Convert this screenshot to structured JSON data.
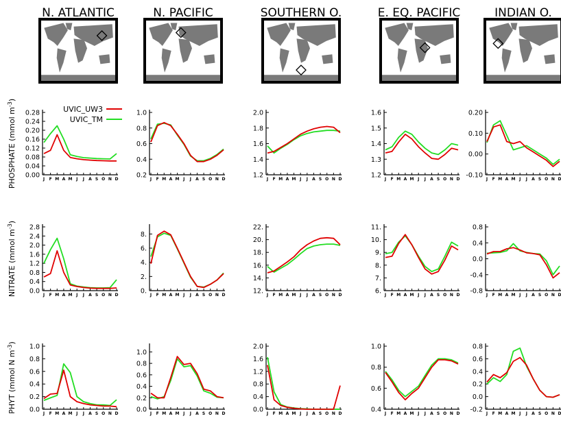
{
  "regions": [
    {
      "title": "N. ATLANTIC",
      "marker": [
        0.82,
        0.25
      ]
    },
    {
      "title": "N. PACIFIC",
      "marker": [
        0.47,
        0.2
      ]
    },
    {
      "title": "SOUTHERN O.",
      "marker": [
        0.5,
        0.82
      ]
    },
    {
      "title": "E. EQ. PACIFIC",
      "marker": [
        0.58,
        0.45
      ]
    },
    {
      "title": "INDIAN O.",
      "marker": [
        0.16,
        0.38
      ]
    }
  ],
  "legend": {
    "uw3": "UVIC_UW3",
    "tm": "UVIC_TM"
  },
  "colors": {
    "uw3": "#e00000",
    "tm": "#22dd22",
    "land": "#7a7a7a"
  },
  "rows": [
    {
      "ylabel": "PHOSPHATE (mmol m",
      "ylabel_sup": "-3",
      "ylabel_end": ")"
    },
    {
      "ylabel": "NITRATE (mmol m",
      "ylabel_sup": "-3",
      "ylabel_end": ")"
    },
    {
      "ylabel": "PHYT (mmol N m",
      "ylabel_sup": "-3",
      "ylabel_end": ")"
    }
  ],
  "month_labels": [
    "J",
    "F",
    "M",
    "A",
    "M",
    "J",
    "J",
    "A",
    "S",
    "O",
    "N",
    "D"
  ],
  "chart_data": [
    {
      "type": "line",
      "row": 0,
      "col": 0,
      "ylim": [
        0,
        0.28
      ],
      "yticks": [
        "0.00",
        "0.04",
        "0.08",
        "0.12",
        "0.16",
        "0.20",
        "0.24",
        "0.28"
      ],
      "series": [
        {
          "name": "UVIC_UW3",
          "values": [
            0.095,
            0.11,
            0.18,
            0.11,
            0.078,
            0.072,
            0.068,
            0.066,
            0.064,
            0.063,
            0.062,
            0.062
          ]
        },
        {
          "name": "UVIC_TM",
          "values": [
            0.145,
            0.185,
            0.22,
            0.16,
            0.09,
            0.082,
            0.077,
            0.075,
            0.073,
            0.072,
            0.071,
            0.095
          ]
        }
      ]
    },
    {
      "type": "line",
      "row": 0,
      "col": 1,
      "ylim": [
        0.2,
        1.0
      ],
      "yticks": [
        "0.2",
        "0.4",
        "0.6",
        "0.8",
        "1.0"
      ],
      "series": [
        {
          "name": "UVIC_UW3",
          "values": [
            0.62,
            0.83,
            0.87,
            0.83,
            0.72,
            0.6,
            0.45,
            0.37,
            0.37,
            0.4,
            0.45,
            0.52
          ]
        },
        {
          "name": "UVIC_TM",
          "values": [
            0.66,
            0.85,
            0.86,
            0.84,
            0.71,
            0.59,
            0.44,
            0.38,
            0.38,
            0.41,
            0.46,
            0.53
          ]
        }
      ]
    },
    {
      "type": "line",
      "row": 0,
      "col": 2,
      "ylim": [
        1.2,
        2.0
      ],
      "yticks": [
        "1.2",
        "1.4",
        "1.6",
        "1.8",
        "2.0"
      ],
      "series": [
        {
          "name": "UVIC_UW3",
          "values": [
            1.48,
            1.5,
            1.55,
            1.6,
            1.66,
            1.72,
            1.76,
            1.79,
            1.81,
            1.82,
            1.81,
            1.74
          ]
        },
        {
          "name": "UVIC_TM",
          "values": [
            1.57,
            1.48,
            1.54,
            1.59,
            1.65,
            1.7,
            1.73,
            1.75,
            1.76,
            1.77,
            1.77,
            1.76
          ]
        }
      ]
    },
    {
      "type": "line",
      "row": 0,
      "col": 3,
      "ylim": [
        1.2,
        1.6
      ],
      "yticks": [
        "1.2",
        "1.3",
        "1.4",
        "1.5",
        "1.6"
      ],
      "series": [
        {
          "name": "UVIC_UW3",
          "values": [
            1.34,
            1.35,
            1.41,
            1.46,
            1.43,
            1.38,
            1.34,
            1.305,
            1.3,
            1.33,
            1.37,
            1.36
          ]
        },
        {
          "name": "UVIC_TM",
          "values": [
            1.36,
            1.38,
            1.44,
            1.48,
            1.46,
            1.41,
            1.37,
            1.34,
            1.33,
            1.36,
            1.4,
            1.39
          ]
        }
      ]
    },
    {
      "type": "line",
      "row": 0,
      "col": 4,
      "ylim": [
        -0.1,
        0.2
      ],
      "yticks": [
        "-0.10",
        "0.00",
        "0.10",
        "0.20"
      ],
      "series": [
        {
          "name": "UVIC_UW3",
          "values": [
            0.06,
            0.13,
            0.14,
            0.06,
            0.05,
            0.06,
            0.03,
            0.01,
            -0.01,
            -0.03,
            -0.06,
            -0.035
          ]
        },
        {
          "name": "UVIC_TM",
          "values": [
            0.055,
            0.14,
            0.16,
            0.09,
            0.02,
            0.03,
            0.04,
            0.02,
            0.0,
            -0.02,
            -0.05,
            -0.025
          ]
        }
      ]
    },
    {
      "type": "line",
      "row": 1,
      "col": 0,
      "ylim": [
        0,
        2.8
      ],
      "yticks": [
        "0.0",
        "0.4",
        "0.8",
        "1.2",
        "1.6",
        "2.0",
        "2.4",
        "2.8"
      ],
      "series": [
        {
          "name": "UVIC_UW3",
          "values": [
            0.6,
            0.75,
            1.75,
            0.8,
            0.25,
            0.18,
            0.14,
            0.11,
            0.1,
            0.1,
            0.1,
            0.12
          ]
        },
        {
          "name": "UVIC_TM",
          "values": [
            1.2,
            1.8,
            2.3,
            1.4,
            0.3,
            0.2,
            0.16,
            0.13,
            0.12,
            0.12,
            0.13,
            0.48
          ]
        }
      ]
    },
    {
      "type": "line",
      "row": 1,
      "col": 1,
      "ylim": [
        0,
        9
      ],
      "yticks": [
        "0.",
        "2.",
        "4.",
        "6.",
        "8."
      ],
      "series": [
        {
          "name": "UVIC_UW3",
          "values": [
            3.8,
            7.8,
            8.4,
            7.9,
            6.0,
            4.0,
            2.0,
            0.6,
            0.45,
            0.9,
            1.5,
            2.4
          ]
        },
        {
          "name": "UVIC_TM",
          "values": [
            4.8,
            7.6,
            8.1,
            7.8,
            5.9,
            3.9,
            1.9,
            0.6,
            0.5,
            0.9,
            1.5,
            2.5
          ]
        }
      ]
    },
    {
      "type": "line",
      "row": 1,
      "col": 2,
      "ylim": [
        12,
        22
      ],
      "yticks": [
        "12.",
        "14.",
        "16.",
        "18.",
        "20.",
        "22."
      ],
      "series": [
        {
          "name": "UVIC_UW3",
          "values": [
            14.8,
            15.1,
            15.8,
            16.5,
            17.3,
            18.4,
            19.2,
            19.8,
            20.2,
            20.3,
            20.2,
            19.2
          ]
        },
        {
          "name": "UVIC_TM",
          "values": [
            15.8,
            14.9,
            15.5,
            16.1,
            16.9,
            17.8,
            18.6,
            19.0,
            19.2,
            19.3,
            19.3,
            19.1
          ]
        }
      ]
    },
    {
      "type": "line",
      "row": 1,
      "col": 3,
      "ylim": [
        6,
        11
      ],
      "yticks": [
        "6.",
        "7.",
        "8.",
        "9.",
        "10.",
        "11."
      ],
      "series": [
        {
          "name": "UVIC_UW3",
          "values": [
            8.6,
            8.7,
            9.7,
            10.4,
            9.6,
            8.6,
            7.7,
            7.3,
            7.5,
            8.4,
            9.5,
            9.2
          ]
        },
        {
          "name": "UVIC_TM",
          "values": [
            8.9,
            9.0,
            9.8,
            10.3,
            9.6,
            8.7,
            7.9,
            7.5,
            7.7,
            8.7,
            9.8,
            9.5
          ]
        }
      ]
    },
    {
      "type": "line",
      "row": 1,
      "col": 4,
      "ylim": [
        -0.8,
        0.8
      ],
      "yticks": [
        "-0.8",
        "-0.4",
        "0.0",
        "0.4",
        "0.8"
      ],
      "series": [
        {
          "name": "UVIC_UW3",
          "values": [
            0.12,
            0.18,
            0.18,
            0.25,
            0.28,
            0.22,
            0.15,
            0.13,
            0.1,
            -0.15,
            -0.48,
            -0.35
          ]
        },
        {
          "name": "UVIC_TM",
          "values": [
            0.14,
            0.15,
            0.16,
            0.2,
            0.38,
            0.2,
            0.16,
            0.13,
            0.12,
            -0.05,
            -0.4,
            -0.18
          ]
        }
      ]
    },
    {
      "type": "line",
      "row": 2,
      "col": 0,
      "ylim": [
        0,
        1.0
      ],
      "yticks": [
        "0.0",
        "0.2",
        "0.4",
        "0.6",
        "0.8",
        "1.0"
      ],
      "series": [
        {
          "name": "UVIC_UW3",
          "values": [
            0.17,
            0.24,
            0.25,
            0.62,
            0.2,
            0.12,
            0.09,
            0.07,
            0.06,
            0.05,
            0.05,
            0.04
          ]
        },
        {
          "name": "UVIC_TM",
          "values": [
            0.14,
            0.18,
            0.22,
            0.72,
            0.58,
            0.2,
            0.12,
            0.09,
            0.07,
            0.07,
            0.06,
            0.15
          ]
        }
      ]
    },
    {
      "type": "line",
      "row": 2,
      "col": 1,
      "ylim": [
        0,
        1.1
      ],
      "yticks": [
        "0.0",
        "0.2",
        "0.4",
        "0.6",
        "0.8",
        "1.0"
      ],
      "series": [
        {
          "name": "UVIC_UW3",
          "values": [
            0.28,
            0.2,
            0.2,
            0.55,
            0.92,
            0.78,
            0.8,
            0.62,
            0.35,
            0.32,
            0.22,
            0.2
          ]
        },
        {
          "name": "UVIC_TM",
          "values": [
            0.22,
            0.18,
            0.22,
            0.5,
            0.88,
            0.74,
            0.76,
            0.58,
            0.32,
            0.28,
            0.21,
            0.2
          ]
        }
      ]
    },
    {
      "type": "line",
      "row": 2,
      "col": 2,
      "ylim": [
        0,
        2.0
      ],
      "yticks": [
        "0.0",
        "0.4",
        "0.8",
        "1.2",
        "1.6",
        "2.0"
      ],
      "series": [
        {
          "name": "UVIC_UW3",
          "values": [
            1.4,
            0.3,
            0.12,
            0.06,
            0.03,
            0.01,
            0.0,
            0.0,
            0.0,
            0.0,
            0.0,
            0.75
          ]
        },
        {
          "name": "UVIC_TM",
          "values": [
            1.65,
            0.55,
            0.15,
            0.07,
            0.04,
            0.02,
            0.01,
            0.0,
            0.0,
            0.0,
            0.0,
            0.0
          ]
        }
      ]
    },
    {
      "type": "line",
      "row": 2,
      "col": 3,
      "ylim": [
        0.4,
        1.0
      ],
      "yticks": [
        "0.4",
        "0.6",
        "0.8",
        "1.0"
      ],
      "series": [
        {
          "name": "UVIC_UW3",
          "values": [
            0.75,
            0.66,
            0.56,
            0.49,
            0.55,
            0.6,
            0.7,
            0.8,
            0.87,
            0.87,
            0.86,
            0.83
          ]
        },
        {
          "name": "UVIC_TM",
          "values": [
            0.76,
            0.68,
            0.58,
            0.52,
            0.57,
            0.62,
            0.72,
            0.82,
            0.88,
            0.88,
            0.87,
            0.84
          ]
        }
      ]
    },
    {
      "type": "line",
      "row": 2,
      "col": 4,
      "ylim": [
        -0.2,
        0.8
      ],
      "yticks": [
        "-0.2",
        "0.0",
        "0.2",
        "0.4",
        "0.6",
        "0.8"
      ],
      "series": [
        {
          "name": "UVIC_UW3",
          "values": [
            0.23,
            0.35,
            0.3,
            0.38,
            0.56,
            0.62,
            0.5,
            0.28,
            0.1,
            0.0,
            -0.01,
            0.03
          ]
        },
        {
          "name": "UVIC_TM",
          "values": [
            0.2,
            0.3,
            0.24,
            0.35,
            0.72,
            0.77,
            0.48,
            0.28,
            0.1,
            0.0,
            -0.01,
            0.03
          ]
        }
      ]
    }
  ]
}
